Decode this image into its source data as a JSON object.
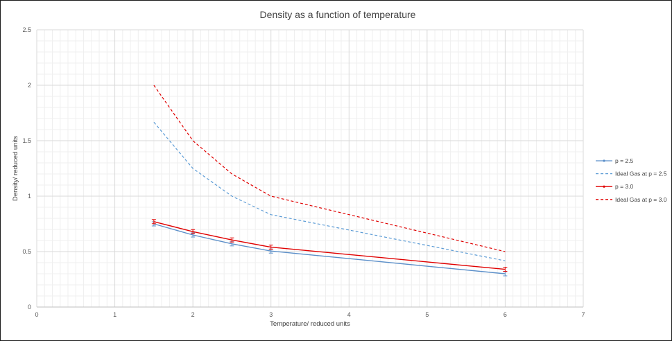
{
  "chart_data": {
    "type": "line",
    "title": "Density as a function of temperature",
    "xlabel": "Temperature/ reduced units",
    "ylabel": "Density/ reduced units",
    "xlim": [
      0,
      7
    ],
    "ylim": [
      0,
      2.5
    ],
    "x_ticks": [
      "0",
      "1",
      "2",
      "3",
      "4",
      "5",
      "6",
      "7"
    ],
    "y_ticks": [
      "0",
      "0.5",
      "1",
      "1.5",
      "2",
      "2.5"
    ],
    "grid": true,
    "legend_position": "right",
    "series": [
      {
        "name": "p = 2.5",
        "color": "#5b8fc9",
        "style": "solid",
        "markers": true,
        "x": [
          1.5,
          2.0,
          2.5,
          3.0,
          6.0
        ],
        "y": [
          0.75,
          0.65,
          0.57,
          0.505,
          0.3
        ]
      },
      {
        "name": "Ideal Gas at p = 2.5",
        "color": "#5b9bd5",
        "style": "dashed",
        "markers": false,
        "x": [
          1.5,
          2.0,
          2.5,
          3.0,
          6.0
        ],
        "y": [
          1.667,
          1.25,
          1.0,
          0.833,
          0.417
        ]
      },
      {
        "name": "p = 3.0",
        "color": "#e00000",
        "style": "solid",
        "markers": true,
        "x": [
          1.5,
          2.0,
          2.5,
          3.0,
          6.0
        ],
        "y": [
          0.77,
          0.68,
          0.605,
          0.54,
          0.34
        ]
      },
      {
        "name": "Ideal Gas at p = 3.0",
        "color": "#e00000",
        "style": "dashed",
        "markers": false,
        "x": [
          1.5,
          2.0,
          2.5,
          3.0,
          6.0
        ],
        "y": [
          2.0,
          1.5,
          1.2,
          1.0,
          0.5
        ]
      }
    ]
  }
}
